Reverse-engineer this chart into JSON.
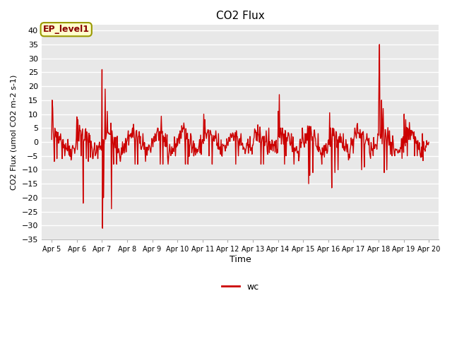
{
  "title": "CO2 Flux",
  "ylabel": "CO2 Flux (umol CO2 m-2 s-1)",
  "xlabel": "Time",
  "ylim": [
    -35,
    42
  ],
  "yticks": [
    -35,
    -30,
    -25,
    -20,
    -15,
    -10,
    -5,
    0,
    5,
    10,
    15,
    20,
    25,
    30,
    35,
    40
  ],
  "line_color": "#cc0000",
  "line_width": 1.0,
  "figure_bg_color": "#ffffff",
  "plot_bg_color": "#e8e8e8",
  "grid_color": "#ffffff",
  "annotation_text": "EP_level1",
  "annotation_bg": "#ffffcc",
  "annotation_border": "#999900",
  "annotation_text_color": "#880000",
  "legend_label": "wc",
  "legend_color": "#cc0000",
  "x_date_labels": [
    "Apr 5",
    "Apr 6",
    "Apr 7",
    "Apr 8",
    "Apr 9",
    "Apr 10",
    "Apr 11",
    "Apr 12",
    "Apr 13",
    "Apr 14",
    "Apr 15",
    "Apr 16",
    "Apr 17",
    "Apr 18",
    "Apr 19",
    "Apr 20"
  ],
  "figsize": [
    6.4,
    4.8
  ],
  "dpi": 100
}
